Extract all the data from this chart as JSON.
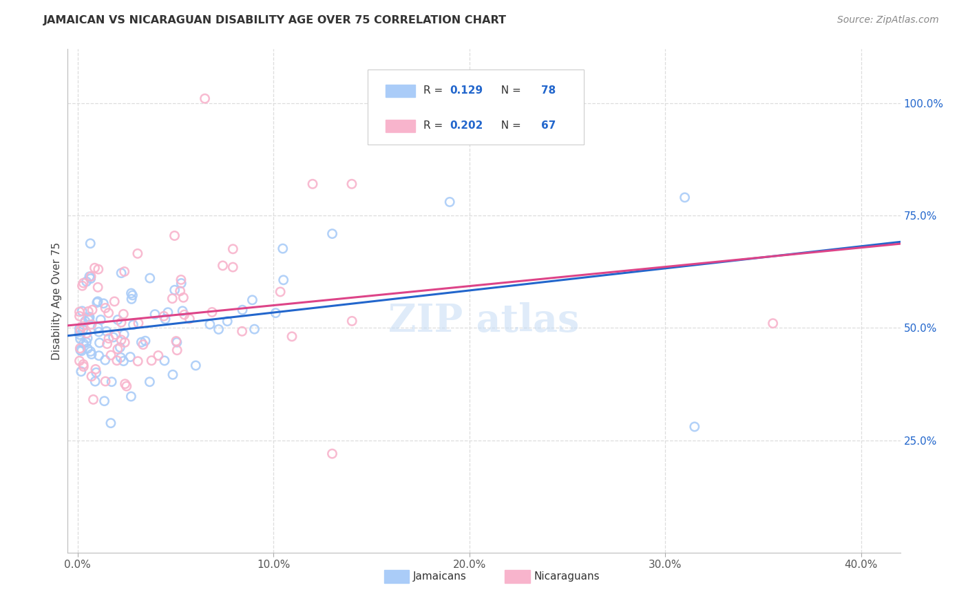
{
  "title": "JAMAICAN VS NICARAGUAN DISABILITY AGE OVER 75 CORRELATION CHART",
  "source": "Source: ZipAtlas.com",
  "ylabel": "Disability Age Over 75",
  "xlabel_ticks": [
    "0.0%",
    "10.0%",
    "20.0%",
    "30.0%",
    "40.0%"
  ],
  "xlabel_values": [
    0.0,
    0.1,
    0.2,
    0.3,
    0.4
  ],
  "ylabel_ticks": [
    "100.0%",
    "75.0%",
    "50.0%",
    "25.0%"
  ],
  "ylabel_values": [
    1.0,
    0.75,
    0.5,
    0.25
  ],
  "xlim": [
    -0.005,
    0.42
  ],
  "ylim": [
    0.0,
    1.12
  ],
  "jamaicans_R": 0.129,
  "jamaicans_N": 78,
  "nicaraguans_R": 0.202,
  "nicaraguans_N": 67,
  "jamaican_color": "#aaccf8",
  "nicaraguan_color": "#f8b4cc",
  "jamaican_line_color": "#2266cc",
  "nicaraguan_line_color": "#dd4488",
  "legend_label_1": "Jamaicans",
  "legend_label_2": "Nicaraguans",
  "watermark_text": "ZIP atlas",
  "background_color": "#ffffff",
  "grid_color": "#dddddd",
  "title_color": "#333333",
  "source_color": "#888888",
  "right_tick_color": "#2266cc"
}
